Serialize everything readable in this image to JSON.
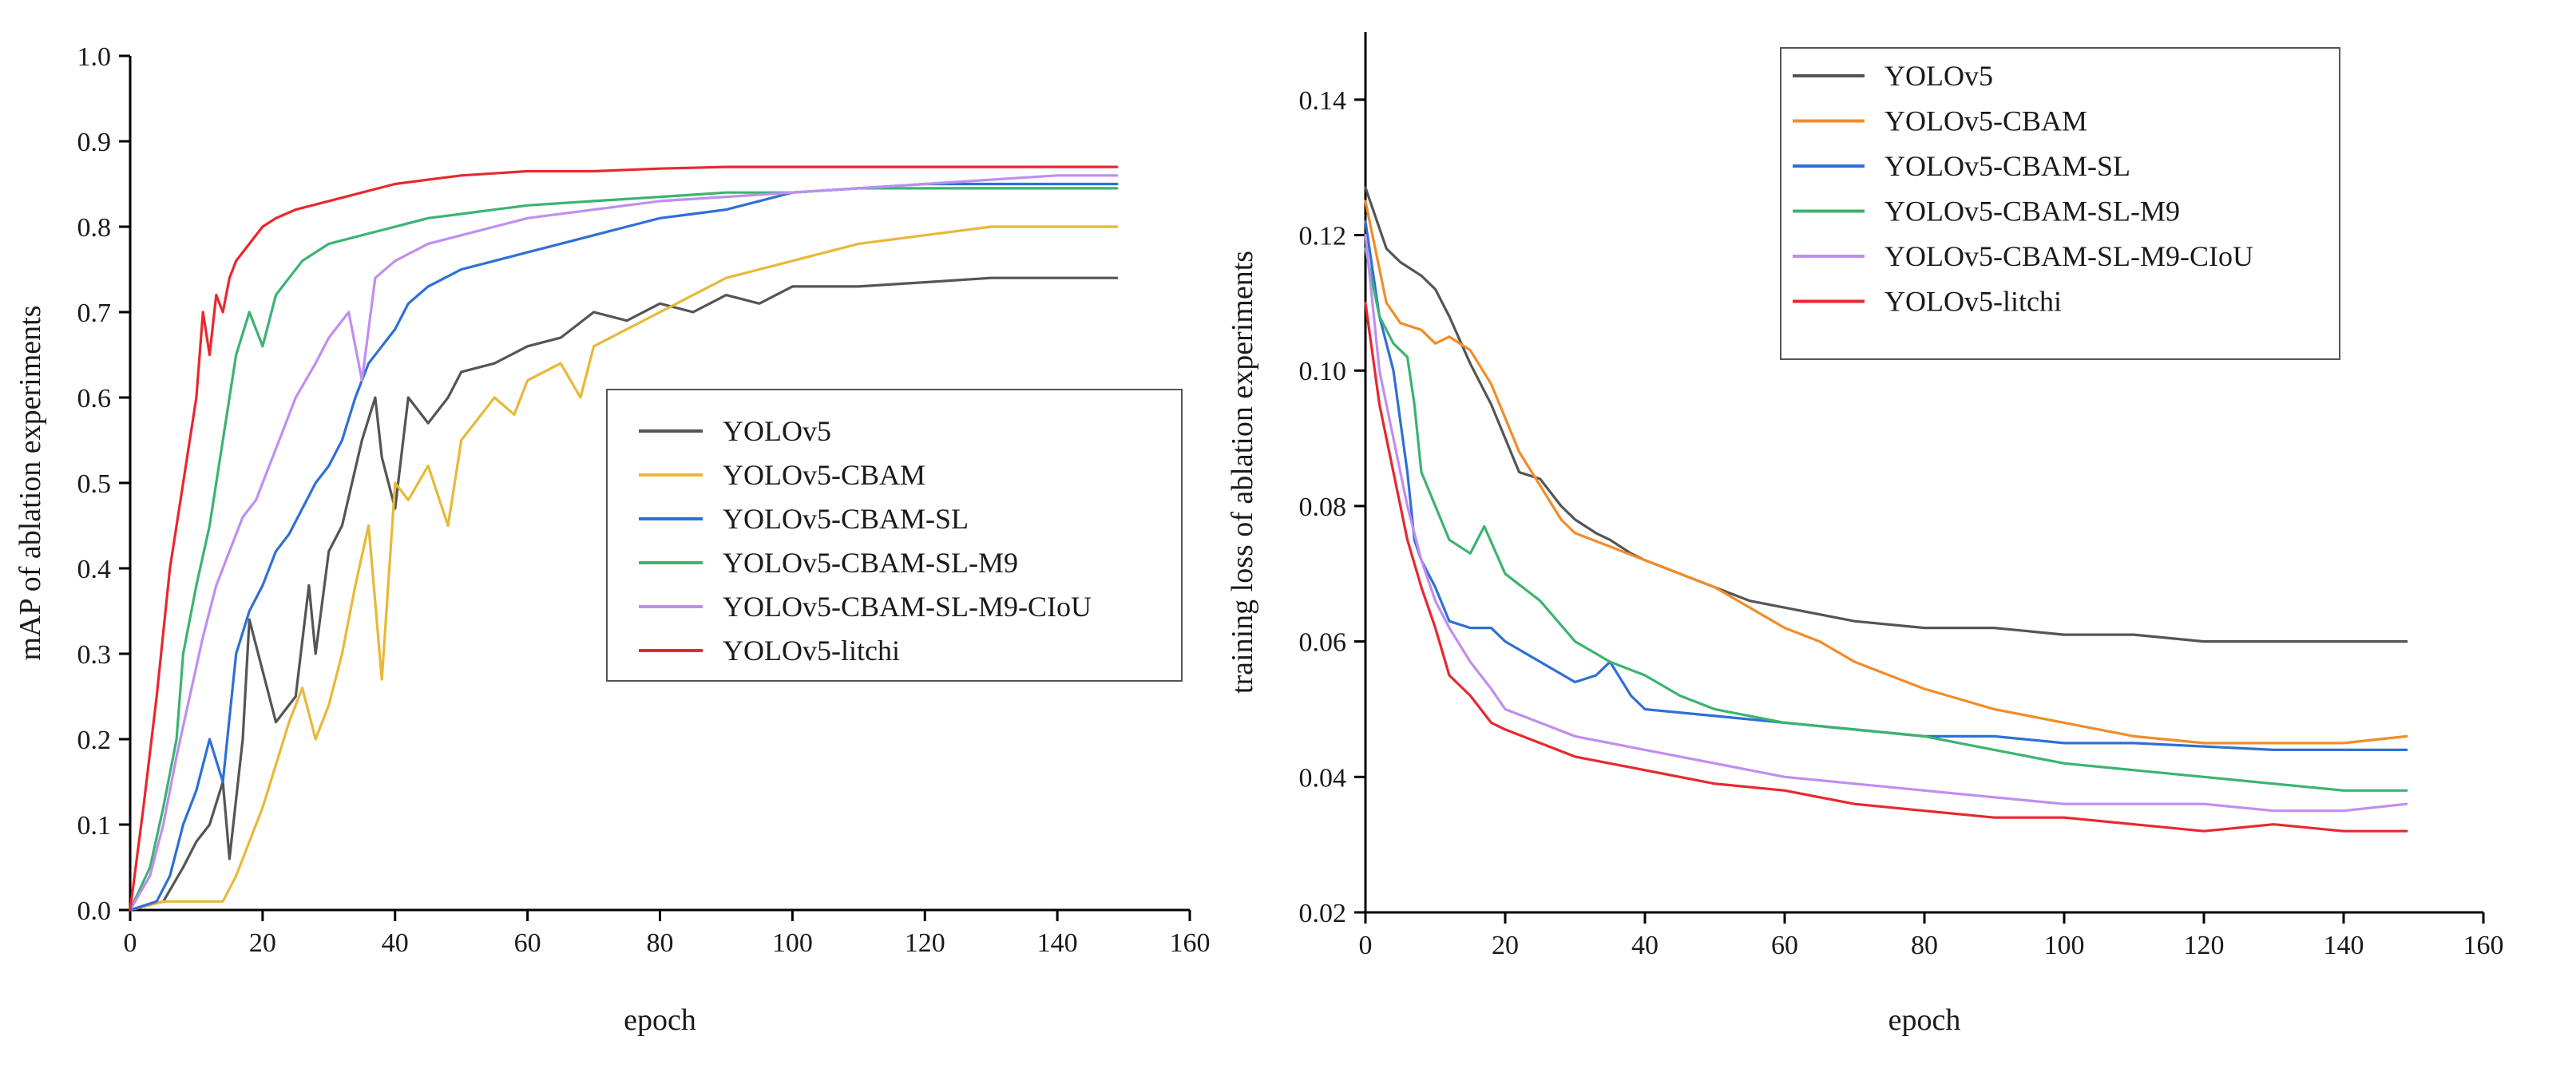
{
  "chart_data": [
    {
      "type": "line",
      "xlabel": "epoch",
      "ylabel": "mAP of ablation experiments",
      "xlim": [
        0,
        160
      ],
      "ylim": [
        0.0,
        1.0
      ],
      "xticks": [
        "0",
        "20",
        "40",
        "60",
        "80",
        "100",
        "120",
        "140",
        "160"
      ],
      "yticks": [
        "0.0",
        "0.1",
        "0.2",
        "0.3",
        "0.4",
        "0.5",
        "0.6",
        "0.7",
        "0.8",
        "0.9",
        "1.0"
      ],
      "legend_position": "center-right",
      "series": [
        {
          "name": "YOLOv5",
          "color": "#555555",
          "x": [
            0,
            5,
            8,
            10,
            12,
            14,
            15,
            17,
            18,
            20,
            22,
            25,
            27,
            28,
            30,
            32,
            35,
            37,
            38,
            40,
            42,
            45,
            48,
            50,
            55,
            60,
            65,
            70,
            75,
            80,
            85,
            90,
            95,
            100,
            110,
            120,
            130,
            140,
            149
          ],
          "values": [
            0.0,
            0.01,
            0.05,
            0.08,
            0.1,
            0.15,
            0.06,
            0.2,
            0.34,
            0.28,
            0.22,
            0.25,
            0.38,
            0.3,
            0.42,
            0.45,
            0.55,
            0.6,
            0.53,
            0.47,
            0.6,
            0.57,
            0.6,
            0.63,
            0.64,
            0.66,
            0.67,
            0.7,
            0.69,
            0.71,
            0.7,
            0.72,
            0.71,
            0.73,
            0.73,
            0.735,
            0.74,
            0.74,
            0.74
          ]
        },
        {
          "name": "YOLOv5-CBAM",
          "color": "#e8b838",
          "x": [
            0,
            5,
            10,
            14,
            16,
            18,
            20,
            22,
            24,
            26,
            28,
            30,
            32,
            34,
            36,
            38,
            40,
            42,
            45,
            48,
            50,
            52,
            55,
            58,
            60,
            65,
            68,
            70,
            75,
            80,
            85,
            90,
            95,
            100,
            110,
            120,
            130,
            140,
            149
          ],
          "values": [
            0.0,
            0.01,
            0.01,
            0.01,
            0.04,
            0.08,
            0.12,
            0.17,
            0.22,
            0.26,
            0.2,
            0.24,
            0.3,
            0.38,
            0.45,
            0.27,
            0.5,
            0.48,
            0.52,
            0.45,
            0.55,
            0.57,
            0.6,
            0.58,
            0.62,
            0.64,
            0.6,
            0.66,
            0.68,
            0.7,
            0.72,
            0.74,
            0.75,
            0.76,
            0.78,
            0.79,
            0.8,
            0.8,
            0.8
          ]
        },
        {
          "name": "YOLOv5-CBAM-SL",
          "color": "#2f6fd6",
          "x": [
            0,
            4,
            6,
            8,
            10,
            12,
            14,
            16,
            18,
            20,
            22,
            24,
            26,
            28,
            30,
            32,
            34,
            36,
            38,
            40,
            42,
            45,
            50,
            55,
            60,
            65,
            70,
            75,
            80,
            85,
            90,
            95,
            100,
            110,
            120,
            130,
            140,
            149
          ],
          "values": [
            0.0,
            0.01,
            0.04,
            0.1,
            0.14,
            0.2,
            0.15,
            0.3,
            0.35,
            0.38,
            0.42,
            0.44,
            0.47,
            0.5,
            0.52,
            0.55,
            0.6,
            0.64,
            0.66,
            0.68,
            0.71,
            0.73,
            0.75,
            0.76,
            0.77,
            0.78,
            0.79,
            0.8,
            0.81,
            0.815,
            0.82,
            0.83,
            0.84,
            0.845,
            0.85,
            0.85,
            0.85,
            0.85
          ]
        },
        {
          "name": "YOLOv5-CBAM-SL-M9",
          "color": "#3cb371",
          "x": [
            0,
            3,
            5,
            7,
            8,
            10,
            12,
            14,
            15,
            16,
            18,
            20,
            22,
            24,
            26,
            28,
            30,
            35,
            40,
            45,
            50,
            55,
            60,
            70,
            80,
            90,
            100,
            110,
            120,
            130,
            140,
            149
          ],
          "values": [
            0.0,
            0.05,
            0.12,
            0.2,
            0.3,
            0.38,
            0.45,
            0.55,
            0.6,
            0.65,
            0.7,
            0.66,
            0.72,
            0.74,
            0.76,
            0.77,
            0.78,
            0.79,
            0.8,
            0.81,
            0.815,
            0.82,
            0.825,
            0.83,
            0.835,
            0.84,
            0.84,
            0.845,
            0.845,
            0.845,
            0.845,
            0.845
          ]
        },
        {
          "name": "YOLOv5-CBAM-SL-M9-CIoU",
          "color": "#c08ef0",
          "x": [
            0,
            3,
            5,
            7,
            9,
            11,
            13,
            15,
            17,
            19,
            21,
            23,
            25,
            28,
            30,
            33,
            35,
            37,
            40,
            45,
            50,
            55,
            60,
            70,
            80,
            90,
            100,
            110,
            120,
            130,
            140,
            149
          ],
          "values": [
            0.0,
            0.04,
            0.1,
            0.18,
            0.25,
            0.32,
            0.38,
            0.42,
            0.46,
            0.48,
            0.52,
            0.56,
            0.6,
            0.64,
            0.67,
            0.7,
            0.62,
            0.74,
            0.76,
            0.78,
            0.79,
            0.8,
            0.81,
            0.82,
            0.83,
            0.835,
            0.84,
            0.845,
            0.85,
            0.855,
            0.86,
            0.86
          ]
        },
        {
          "name": "YOLOv5-litchi",
          "color": "#e8282e",
          "x": [
            0,
            2,
            4,
            6,
            8,
            10,
            11,
            12,
            13,
            14,
            15,
            16,
            18,
            20,
            22,
            25,
            30,
            35,
            40,
            45,
            50,
            60,
            70,
            80,
            90,
            100,
            110,
            120,
            130,
            140,
            149
          ],
          "values": [
            0.0,
            0.12,
            0.25,
            0.4,
            0.5,
            0.6,
            0.7,
            0.65,
            0.72,
            0.7,
            0.74,
            0.76,
            0.78,
            0.8,
            0.81,
            0.82,
            0.83,
            0.84,
            0.85,
            0.855,
            0.86,
            0.865,
            0.865,
            0.868,
            0.87,
            0.87,
            0.87,
            0.87,
            0.87,
            0.87,
            0.87
          ]
        }
      ]
    },
    {
      "type": "line",
      "xlabel": "epoch",
      "ylabel": "training loss of ablation experiments",
      "xlim": [
        0,
        160
      ],
      "ylim": [
        0.02,
        0.15
      ],
      "xticks": [
        "0",
        "20",
        "40",
        "60",
        "80",
        "100",
        "120",
        "140",
        "160"
      ],
      "yticks": [
        "0.02",
        "0.04",
        "0.06",
        "0.08",
        "0.10",
        "0.12",
        "0.14"
      ],
      "legend_position": "top-center",
      "series": [
        {
          "name": "YOLOv5",
          "color": "#555555",
          "x": [
            0,
            3,
            5,
            8,
            10,
            12,
            15,
            18,
            20,
            22,
            25,
            28,
            30,
            33,
            35,
            38,
            40,
            45,
            50,
            55,
            60,
            65,
            70,
            80,
            90,
            100,
            110,
            120,
            130,
            140,
            149
          ],
          "values": [
            0.127,
            0.118,
            0.116,
            0.114,
            0.112,
            0.108,
            0.101,
            0.095,
            0.09,
            0.085,
            0.084,
            0.08,
            0.078,
            0.076,
            0.075,
            0.073,
            0.072,
            0.07,
            0.068,
            0.066,
            0.065,
            0.064,
            0.063,
            0.062,
            0.062,
            0.061,
            0.061,
            0.06,
            0.06,
            0.06,
            0.06
          ]
        },
        {
          "name": "YOLOv5-CBAM",
          "color": "#f28c28",
          "x": [
            0,
            3,
            5,
            8,
            10,
            12,
            15,
            18,
            20,
            22,
            25,
            28,
            30,
            35,
            40,
            45,
            50,
            55,
            60,
            65,
            70,
            80,
            90,
            100,
            110,
            120,
            130,
            140,
            149
          ],
          "values": [
            0.125,
            0.11,
            0.107,
            0.106,
            0.104,
            0.105,
            0.103,
            0.098,
            0.093,
            0.088,
            0.083,
            0.078,
            0.076,
            0.074,
            0.072,
            0.07,
            0.068,
            0.065,
            0.062,
            0.06,
            0.057,
            0.053,
            0.05,
            0.048,
            0.046,
            0.045,
            0.045,
            0.045,
            0.046
          ]
        },
        {
          "name": "YOLOv5-CBAM-SL",
          "color": "#2f6fd6",
          "x": [
            0,
            2,
            4,
            6,
            7,
            8,
            10,
            12,
            15,
            18,
            20,
            25,
            30,
            33,
            35,
            38,
            40,
            50,
            60,
            70,
            80,
            90,
            100,
            110,
            120,
            130,
            140,
            149
          ],
          "values": [
            0.122,
            0.108,
            0.1,
            0.085,
            0.075,
            0.072,
            0.068,
            0.063,
            0.062,
            0.062,
            0.06,
            0.057,
            0.054,
            0.055,
            0.057,
            0.052,
            0.05,
            0.049,
            0.048,
            0.047,
            0.046,
            0.046,
            0.045,
            0.045,
            0.0445,
            0.044,
            0.044,
            0.044
          ]
        },
        {
          "name": "YOLOv5-CBAM-SL-M9",
          "color": "#3cb371",
          "x": [
            0,
            2,
            4,
            6,
            7,
            8,
            10,
            12,
            15,
            17,
            20,
            25,
            30,
            35,
            40,
            45,
            50,
            60,
            70,
            80,
            90,
            100,
            110,
            120,
            130,
            140,
            149
          ],
          "values": [
            0.118,
            0.108,
            0.104,
            0.102,
            0.095,
            0.085,
            0.08,
            0.075,
            0.073,
            0.077,
            0.07,
            0.066,
            0.06,
            0.057,
            0.055,
            0.052,
            0.05,
            0.048,
            0.047,
            0.046,
            0.044,
            0.042,
            0.041,
            0.04,
            0.039,
            0.038,
            0.038
          ]
        },
        {
          "name": "YOLOv5-CBAM-SL-M9-CIoU",
          "color": "#c08ef0",
          "x": [
            0,
            2,
            4,
            6,
            8,
            10,
            12,
            15,
            18,
            20,
            25,
            30,
            40,
            50,
            60,
            70,
            80,
            90,
            100,
            110,
            120,
            130,
            140,
            149
          ],
          "values": [
            0.12,
            0.1,
            0.09,
            0.08,
            0.072,
            0.066,
            0.062,
            0.057,
            0.053,
            0.05,
            0.048,
            0.046,
            0.044,
            0.042,
            0.04,
            0.039,
            0.038,
            0.037,
            0.036,
            0.036,
            0.036,
            0.035,
            0.035,
            0.036
          ]
        },
        {
          "name": "YOLOv5-litchi",
          "color": "#e8282e",
          "x": [
            0,
            2,
            4,
            6,
            8,
            10,
            12,
            15,
            18,
            20,
            25,
            30,
            40,
            50,
            60,
            70,
            80,
            90,
            100,
            110,
            120,
            130,
            140,
            149
          ],
          "values": [
            0.11,
            0.095,
            0.085,
            0.075,
            0.068,
            0.062,
            0.055,
            0.052,
            0.048,
            0.047,
            0.045,
            0.043,
            0.041,
            0.039,
            0.038,
            0.036,
            0.035,
            0.034,
            0.034,
            0.033,
            0.032,
            0.033,
            0.032,
            0.032
          ]
        }
      ]
    }
  ]
}
